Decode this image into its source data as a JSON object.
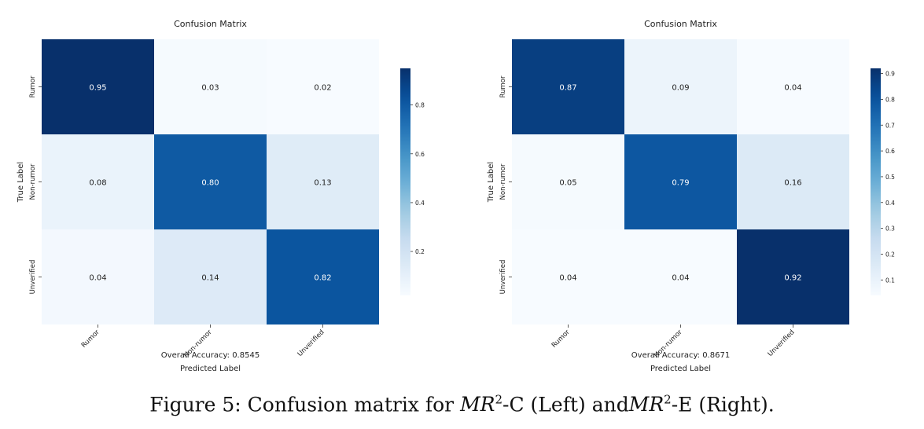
{
  "chart_data": [
    {
      "type": "heatmap",
      "title": "Confusion Matrix",
      "xlabel": "Predicted Label",
      "ylabel": "True Label",
      "x_categories": [
        "Rumor",
        "Non-rumor",
        "Unverified"
      ],
      "y_categories": [
        "Rumor",
        "Non-rumor",
        "Unverified"
      ],
      "values": [
        [
          0.95,
          0.03,
          0.02
        ],
        [
          0.08,
          0.8,
          0.13
        ],
        [
          0.04,
          0.14,
          0.82
        ]
      ],
      "annotation": "Overall Accuracy: 0.8545",
      "colorbar": {
        "min": 0.02,
        "max": 0.95,
        "ticks": [
          0.2,
          0.4,
          0.6,
          0.8
        ],
        "tick_labels": [
          "0.2",
          "0.4",
          "0.6",
          "0.8"
        ]
      },
      "colormap": "Blues"
    },
    {
      "type": "heatmap",
      "title": "Confusion Matrix",
      "xlabel": "Predicted Label",
      "ylabel": "True Label",
      "x_categories": [
        "Rumor",
        "Non-rumor",
        "Unverified"
      ],
      "y_categories": [
        "Rumor",
        "Non-rumor",
        "Unverified"
      ],
      "values": [
        [
          0.87,
          0.09,
          0.04
        ],
        [
          0.05,
          0.79,
          0.16
        ],
        [
          0.04,
          0.04,
          0.92
        ]
      ],
      "annotation": "Overall Accuracy: 0.8671",
      "colorbar": {
        "min": 0.04,
        "max": 0.92,
        "ticks": [
          0.1,
          0.2,
          0.3,
          0.4,
          0.5,
          0.6,
          0.7,
          0.8,
          0.9
        ],
        "tick_labels": [
          "0.1",
          "0.2",
          "0.3",
          "0.4",
          "0.5",
          "0.6",
          "0.7",
          "0.8",
          "0.9"
        ]
      },
      "colormap": "Blues"
    }
  ],
  "caption": {
    "prefix": "Figure 5: Confusion matrix for ",
    "model_base": "MR",
    "model_exp": "2",
    "left_suffix": "-C (Left) and",
    "right_suffix": "-E (Right)."
  }
}
